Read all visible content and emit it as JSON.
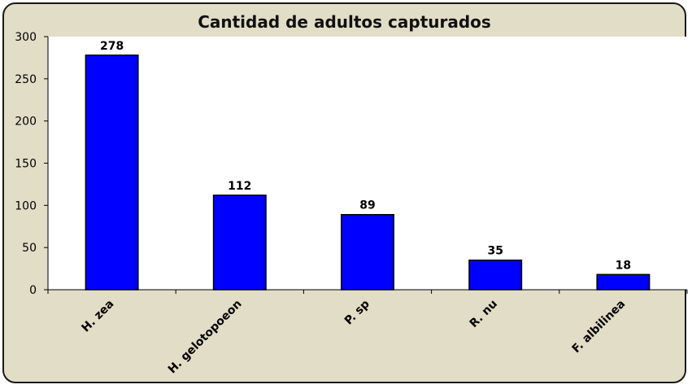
{
  "chart_data": {
    "type": "bar",
    "title": "Cantidad de adultos capturados",
    "categories": [
      "H. zea",
      "H. gelotopoeon",
      "P. sp",
      "R. nu",
      "F. albilinea"
    ],
    "values": [
      278,
      112,
      89,
      35,
      18
    ],
    "data_labels": [
      "278",
      "112",
      "89",
      "35",
      "18"
    ],
    "ylim": [
      0,
      300
    ],
    "yticks": [
      0,
      50,
      100,
      150,
      200,
      250,
      300
    ],
    "ytick_labels": [
      "0",
      "50",
      "100",
      "150",
      "200",
      "250",
      "300"
    ],
    "grid": false,
    "legend": "none",
    "colors": {
      "bar_fill": "#0000ff",
      "bar_stroke": "#000000",
      "plot_background": "#ffffff",
      "frame_background": "#e2ddc6",
      "frame_border": "#1a1a1a"
    }
  }
}
